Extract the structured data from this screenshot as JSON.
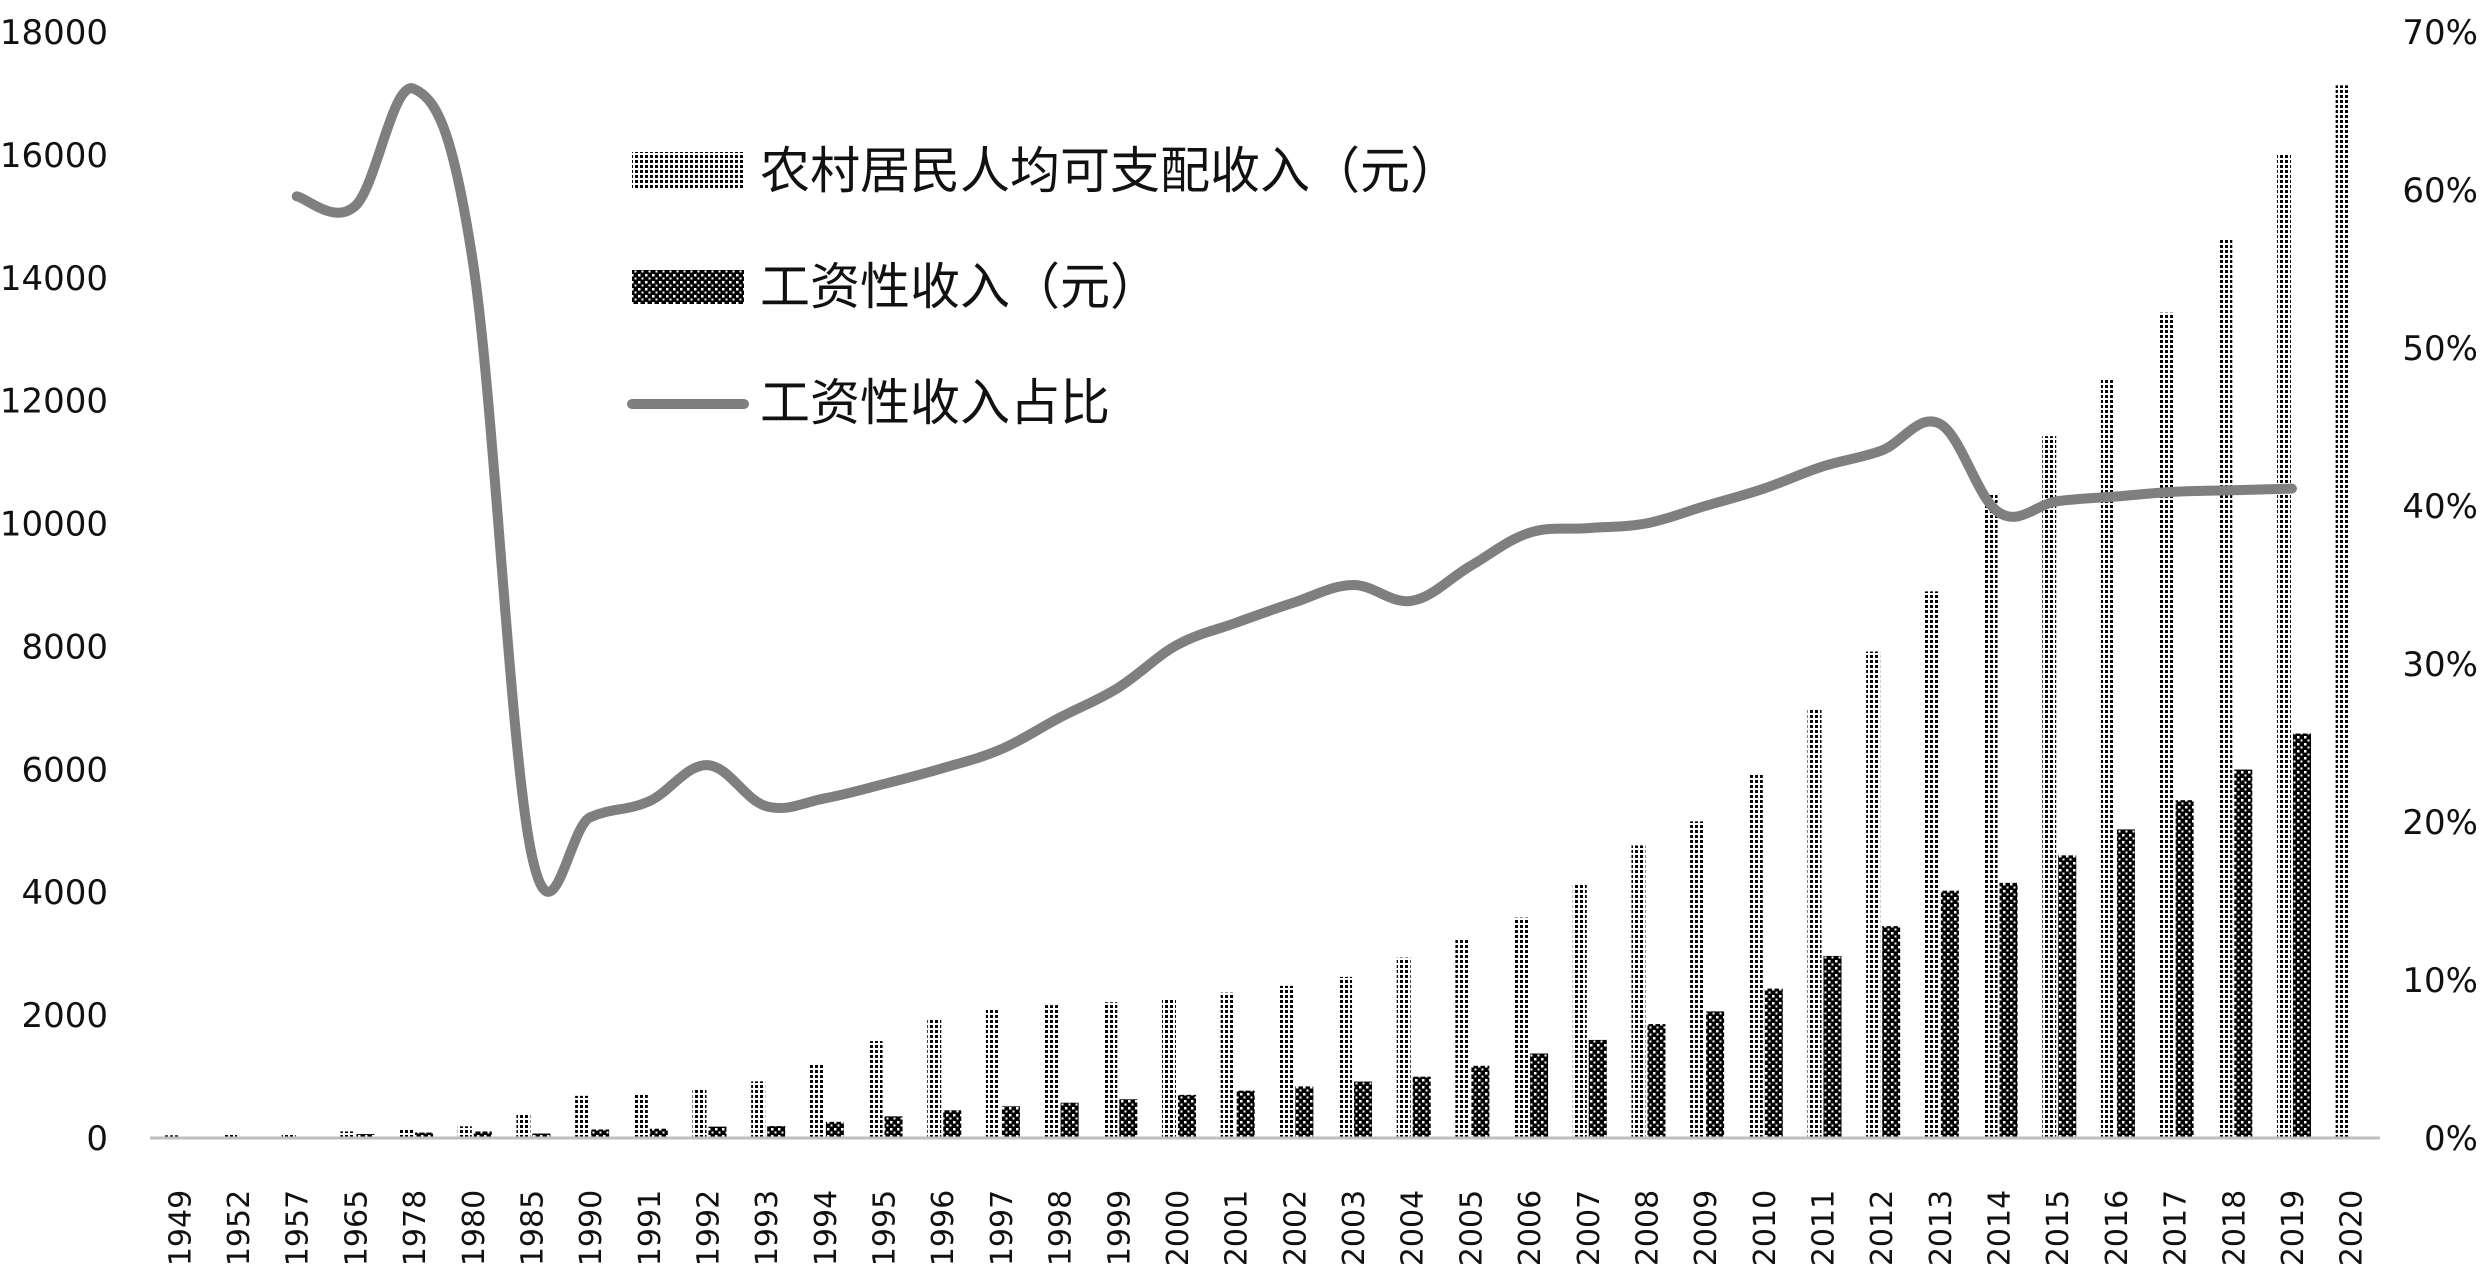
{
  "chart_data": {
    "type": "bar",
    "categories": [
      "1949",
      "1952",
      "1957",
      "1965",
      "1978",
      "1980",
      "1985",
      "1990",
      "1991",
      "1992",
      "1993",
      "1994",
      "1995",
      "1996",
      "1997",
      "1998",
      "1999",
      "2000",
      "2001",
      "2002",
      "2003",
      "2004",
      "2005",
      "2006",
      "2007",
      "2008",
      "2009",
      "2010",
      "2011",
      "2012",
      "2013",
      "2014",
      "2015",
      "2016",
      "2017",
      "2018",
      "2019",
      "2020"
    ],
    "series": [
      {
        "name": "农村居民人均可支配收入（元）",
        "kind": "bar",
        "pattern": "dense-dots",
        "axis": "left",
        "values": [
          44,
          57,
          73,
          107,
          134,
          191,
          398,
          686,
          709,
          784,
          922,
          1221,
          1578,
          1926,
          2090,
          2162,
          2210,
          2253,
          2366,
          2476,
          2622,
          2936,
          3255,
          3587,
          4140,
          4761,
          5153,
          5919,
          6977,
          7917,
          8896,
          10489,
          11422,
          12363,
          13432,
          14617,
          16021,
          17131
        ]
      },
      {
        "name": "工资性收入（元）",
        "kind": "bar",
        "pattern": "crosshatch",
        "axis": "left",
        "values": [
          null,
          null,
          null,
          64,
          89,
          106,
          72,
          139,
          151,
          185,
          194,
          263,
          353,
          451,
          515,
          574,
          630,
          702,
          771,
          840,
          918,
          998,
          1175,
          1375,
          1596,
          1854,
          2061,
          2431,
          2963,
          3448,
          4025,
          4152,
          4600,
          5022,
          5498,
          5996,
          6583,
          null
        ]
      },
      {
        "name": "工资性收入占比",
        "kind": "line",
        "axis": "right",
        "values": [
          null,
          null,
          0.596,
          0.59,
          0.664,
          0.555,
          0.18,
          0.203,
          0.213,
          0.236,
          0.21,
          0.215,
          0.224,
          0.234,
          0.246,
          0.266,
          0.285,
          0.312,
          0.326,
          0.339,
          0.35,
          0.34,
          0.362,
          0.383,
          0.386,
          0.389,
          0.4,
          0.411,
          0.425,
          0.435,
          0.452,
          0.396,
          0.403,
          0.406,
          0.409,
          0.41,
          0.411,
          null
        ]
      }
    ],
    "y_left": {
      "min": 0,
      "max": 18000,
      "step": 2000,
      "ticks": [
        "0",
        "2000",
        "4000",
        "6000",
        "8000",
        "10000",
        "12000",
        "14000",
        "16000",
        "18000"
      ]
    },
    "y_right": {
      "min": 0,
      "max": 0.7,
      "step": 0.1,
      "ticks": [
        "0%",
        "10%",
        "20%",
        "30%",
        "40%",
        "50%",
        "60%",
        "70%"
      ]
    },
    "legend": {
      "placement": "top-center"
    },
    "grid": false,
    "colors": {
      "bar": "#000000",
      "line": "#7f7f7f",
      "axis": "#bfbfbf"
    }
  }
}
